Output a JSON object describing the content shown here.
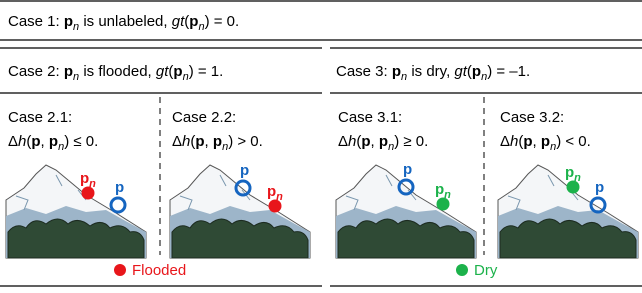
{
  "case1": [
    "Case 1: ",
    "p",
    "n",
    " is unlabeled, ",
    "gt",
    "(",
    "p",
    "n",
    ") = 0."
  ],
  "case2": [
    "Case 2: ",
    "p",
    "n",
    " is flooded, ",
    "gt",
    "(",
    "p",
    "n",
    ") = 1."
  ],
  "case3": [
    "Case 3: ",
    "p",
    "n",
    " is dry, ",
    "gt",
    "(",
    "p",
    "n",
    ") = –1."
  ],
  "subcases": [
    {
      "title": "Case 2.1:",
      "condition": [
        "Δ",
        "h",
        "(",
        "p",
        ", ",
        "p",
        "n",
        ") ≤ 0."
      ]
    },
    {
      "title": "Case 2.2:",
      "condition": [
        "Δ",
        "h",
        "(",
        "p",
        ", ",
        "p",
        "n",
        ") > 0."
      ]
    },
    {
      "title": "Case 3.1:",
      "condition": [
        "Δ",
        "h",
        "(",
        "p",
        ", ",
        "p",
        "n",
        ") ≥ 0."
      ]
    },
    {
      "title": "Case 3.2:",
      "condition": [
        "Δ",
        "h",
        "(",
        "p",
        ", ",
        "p",
        "n",
        ") < 0."
      ]
    }
  ],
  "markers": {
    "p": "p",
    "pn": [
      "p",
      "n"
    ]
  },
  "legend": [
    "Flooded",
    "Dry"
  ]
}
